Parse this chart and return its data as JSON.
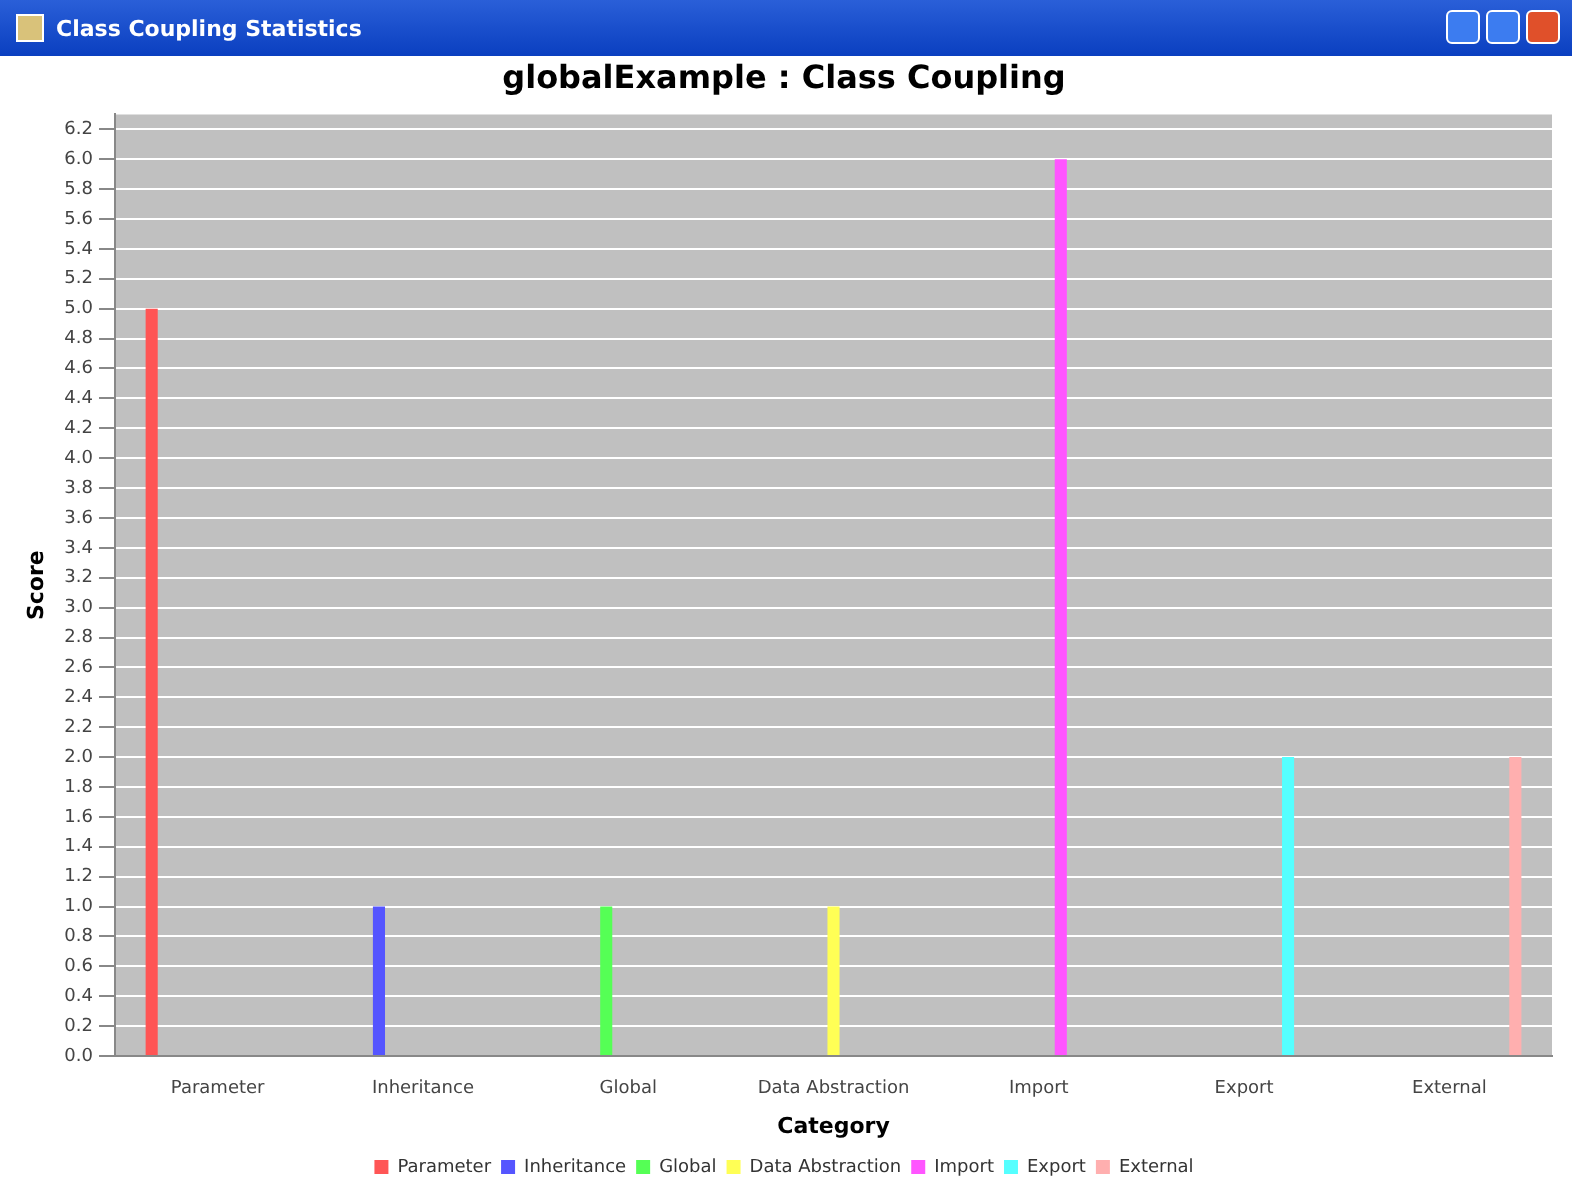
{
  "chart_data": {
    "type": "bar",
    "title": "globalExample : Class Coupling",
    "xlabel": "Category",
    "ylabel": "Score",
    "annotations": [
      "Class Coupling Statistics"
    ],
    "categories": [
      "Parameter",
      "Inheritance",
      "Global",
      "Data Abstraction",
      "Import",
      "Export",
      "External"
    ],
    "series": [
      {
        "name": "Parameter",
        "color": "#ff5555",
        "values": [
          5,
          null,
          null,
          null,
          null,
          null,
          null
        ]
      },
      {
        "name": "Inheritance",
        "color": "#5555ff",
        "values": [
          null,
          1,
          null,
          null,
          null,
          null,
          null
        ]
      },
      {
        "name": "Global",
        "color": "#55ff55",
        "values": [
          null,
          null,
          1,
          null,
          null,
          null,
          null
        ]
      },
      {
        "name": "Data Abstraction",
        "color": "#ffff55",
        "values": [
          null,
          null,
          null,
          1,
          null,
          null,
          null
        ]
      },
      {
        "name": "Import",
        "color": "#ff55ff",
        "values": [
          null,
          null,
          null,
          null,
          6,
          null,
          null
        ]
      },
      {
        "name": "Export",
        "color": "#55ffff",
        "values": [
          null,
          null,
          null,
          null,
          null,
          2,
          null
        ]
      },
      {
        "name": "External",
        "color": "#ffafaf",
        "values": [
          null,
          null,
          null,
          null,
          null,
          null,
          2
        ]
      }
    ],
    "ylim": [
      0,
      6.3
    ],
    "yticks": [
      {
        "value": 0,
        "label": "0.0"
      },
      0.2,
      0.4,
      0.6,
      0.8,
      {
        "value": 1,
        "label": "1.0"
      },
      1.2,
      1.4,
      1.6,
      1.8,
      {
        "value": 2,
        "label": "2.0"
      },
      2.2,
      2.4,
      2.6,
      2.8,
      {
        "value": 3,
        "label": "3.0"
      },
      3.2,
      3.4,
      3.6,
      3.8,
      {
        "value": 4,
        "label": "4.0"
      },
      4.2,
      4.4,
      4.6,
      4.8,
      {
        "value": 5,
        "label": "5.0"
      },
      5.2,
      5.4,
      5.6,
      5.8,
      {
        "value": 6,
        "label": "6.0"
      },
      6.2
    ],
    "grid": "y",
    "legend": "bottom"
  }
}
